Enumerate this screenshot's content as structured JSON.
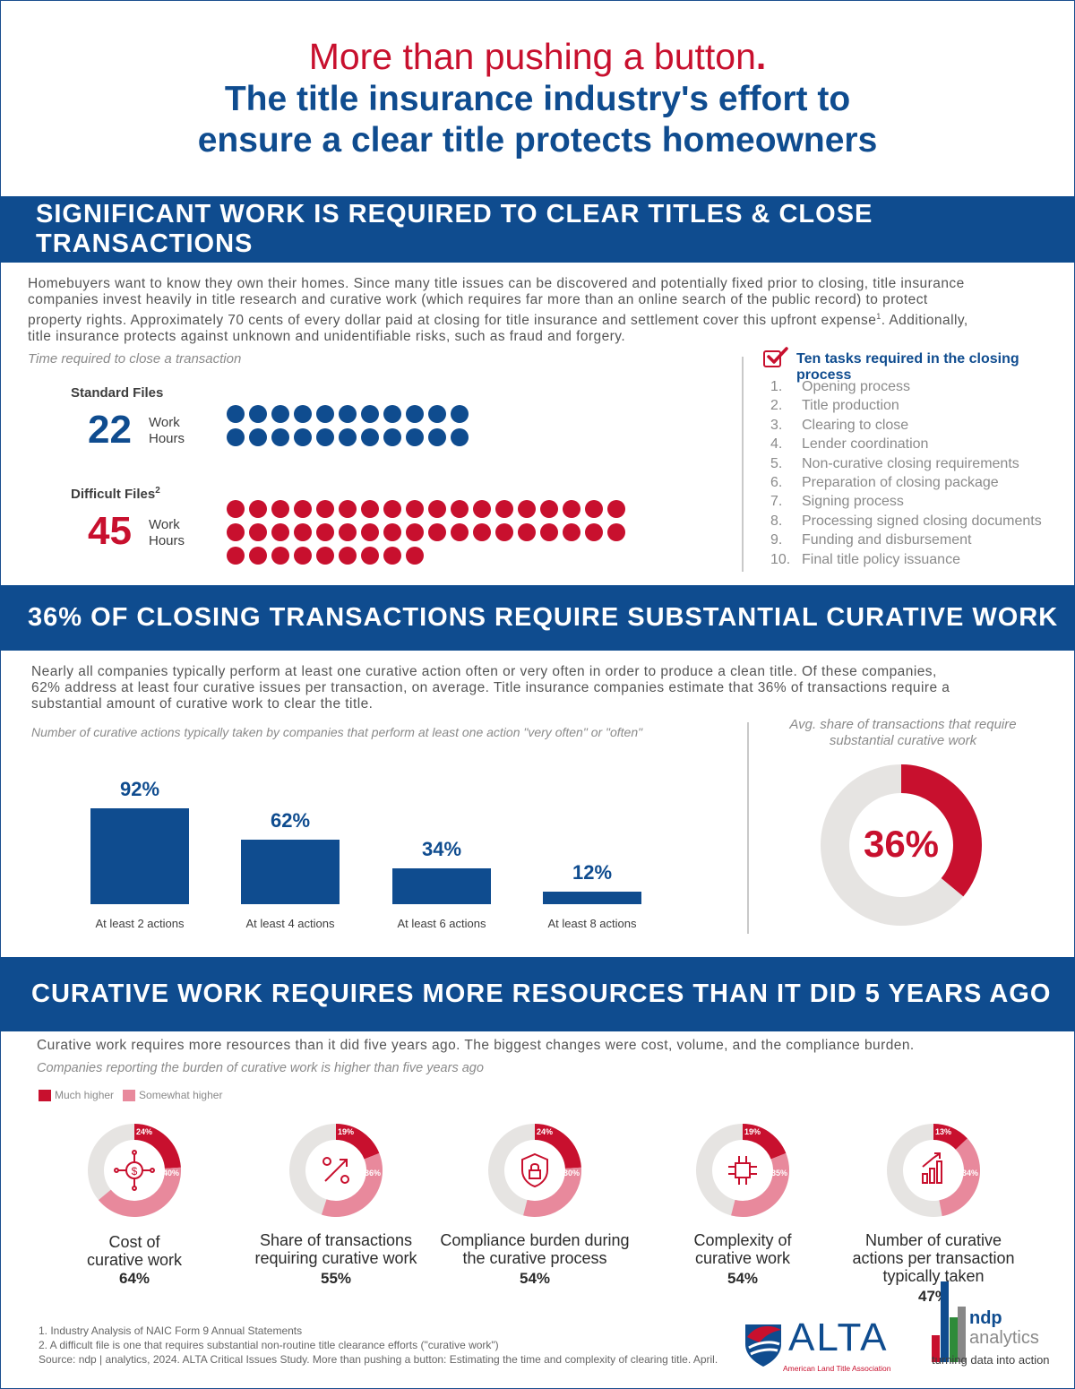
{
  "header": {
    "title_red": "More than pushing a button",
    "title_red_dot": ".",
    "title_blue_1": "The title insurance industry's effort to",
    "title_blue_2": "ensure a clear title protects homeowners"
  },
  "section1": {
    "banner": "SIGNIFICANT WORK IS REQUIRED TO CLEAR TITLES & CLOSE TRANSACTIONS",
    "para_1": "Homebuyers want to know they own their homes. Since many title issues can be discovered and potentially fixed prior to closing, title insurance",
    "para_2": "companies invest heavily in title research and curative work (which requires far more than an online search of the public record) to protect",
    "para_3": "property rights. Approximately 70 cents of every dollar paid at closing for title insurance and settlement cover this upfront expense",
    "para_3_sup": "1",
    "para_3_tail": ".  Additionally,",
    "para_4": "title insurance protects against unknown and unidentifiable risks, such as fraud and forgery.",
    "time_caption": "Time required to close a transaction",
    "standard_label": "Standard Files",
    "standard_hours": "22",
    "difficult_label": "Difficult Files",
    "difficult_sup": "2",
    "difficult_hours": "45",
    "unit_1": "Work",
    "unit_2": "Hours",
    "tasks_title": "Ten tasks required in the closing process",
    "tasks": [
      {
        "n": "1.",
        "label": "Opening process"
      },
      {
        "n": "2.",
        "label": "Title production"
      },
      {
        "n": "3.",
        "label": "Clearing to close"
      },
      {
        "n": "4.",
        "label": "Lender coordination"
      },
      {
        "n": "5.",
        "label": "Non-curative closing requirements"
      },
      {
        "n": "6.",
        "label": "Preparation of closing package"
      },
      {
        "n": "7.",
        "label": "Signing process"
      },
      {
        "n": "8.",
        "label": "Processing signed closing documents"
      },
      {
        "n": "9.",
        "label": "Funding and disbursement"
      },
      {
        "n": "10.",
        "label": "Final title policy issuance"
      }
    ]
  },
  "section2": {
    "banner": "36% OF CLOSING TRANSACTIONS REQUIRE SUBSTANTIAL CURATIVE WORK",
    "para_1": "Nearly all companies typically perform at least one curative action often or very often in order to produce a clean title. Of these companies,",
    "para_2": "62% address at least four curative issues per transaction, on average. Title insurance companies estimate that 36% of transactions require a",
    "para_3": "substantial amount of curative work to clear the title.",
    "bar_caption": "Number of curative actions typically taken by companies that perform at least one action \"very often\" or \"often\"",
    "donut_caption_1": "Avg. share of transactions that require",
    "donut_caption_2": "substantial curative work",
    "donut_value_label": "36%"
  },
  "section3": {
    "banner": "CURATIVE WORK REQUIRES MORE RESOURCES THAN IT DID 5 YEARS AGO",
    "para": "Curative work requires more resources than it did five years ago. The biggest changes were cost, volume, and the compliance burden.",
    "caption": "Companies reporting the burden of curative work is higher than five years ago",
    "legend_much": "Much higher",
    "legend_somewhat": "Somewhat higher",
    "items": [
      {
        "cap_1": "Cost of",
        "cap_2": "curative work",
        "cap_3": "",
        "total": "64%",
        "much_label": "24%",
        "some_label": "40%"
      },
      {
        "cap_1": "Share of transactions",
        "cap_2": "requiring curative work",
        "cap_3": "",
        "total": "55%",
        "much_label": "19%",
        "some_label": "36%"
      },
      {
        "cap_1": "Compliance burden during",
        "cap_2": "the curative process",
        "cap_3": "",
        "total": "54%",
        "much_label": "24%",
        "some_label": "30%"
      },
      {
        "cap_1": "Complexity of",
        "cap_2": "curative work",
        "cap_3": "",
        "total": "54%",
        "much_label": "19%",
        "some_label": "35%"
      },
      {
        "cap_1": "Number of curative",
        "cap_2": "actions per transaction",
        "cap_3": "typically taken",
        "total": "47%",
        "much_label": "13%",
        "some_label": "34%"
      }
    ]
  },
  "footer": {
    "note_1": "1. Industry Analysis of NAIC Form 9 Annual Statements",
    "note_2": "2. A difficult file is one that requires substantial non-routine title clearance efforts (\"curative work\")",
    "source": "Source: ndp | analytics, 2024. ALTA Critical Issues Study. More than pushing a button: Estimating the time and complexity of clearing title. April.",
    "alta_name": "ALTA",
    "alta_sub": "American Land Title Association",
    "ndp_1": "ndp",
    "ndp_2": "analytics",
    "ndp_tag": "turning data into action"
  },
  "colors": {
    "blue": "#0f4c8f",
    "red": "#c8102e",
    "pink": "#e8899c",
    "gray_ring": "#e6e4e2"
  },
  "chart_data": [
    {
      "type": "bar",
      "title": "Number of curative actions typically taken by companies that perform at least one action \"very often\" or \"often\"",
      "categories": [
        "At least 2 actions",
        "At least 4 actions",
        "At least 6 actions",
        "At least 8 actions"
      ],
      "values": [
        92,
        62,
        34,
        12
      ],
      "data_labels": [
        "92%",
        "62%",
        "34%",
        "12%"
      ],
      "unit": "%",
      "ylim": [
        0,
        100
      ],
      "grid": false
    },
    {
      "type": "pie",
      "title": "Avg. share of transactions that require substantial curative work",
      "values": [
        36,
        64
      ],
      "center_label": "36%"
    },
    {
      "type": "pie",
      "title": "Companies reporting the burden of curative work is higher than five years ago",
      "legend": [
        "Much higher",
        "Somewhat higher"
      ],
      "categories": [
        "Cost of curative work",
        "Share of transactions requiring curative work",
        "Compliance burden during the curative process",
        "Complexity of curative work",
        "Number of curative actions per transaction typically taken"
      ],
      "series": [
        {
          "name": "Much higher",
          "values": [
            24,
            19,
            24,
            19,
            13
          ]
        },
        {
          "name": "Somewhat higher",
          "values": [
            40,
            36,
            30,
            35,
            34
          ]
        }
      ],
      "totals": [
        64,
        55,
        54,
        54,
        47
      ]
    },
    {
      "type": "bar",
      "title": "Time required to close a transaction",
      "categories": [
        "Standard Files",
        "Difficult Files"
      ],
      "values": [
        22,
        45
      ],
      "unit": "Work Hours"
    }
  ]
}
